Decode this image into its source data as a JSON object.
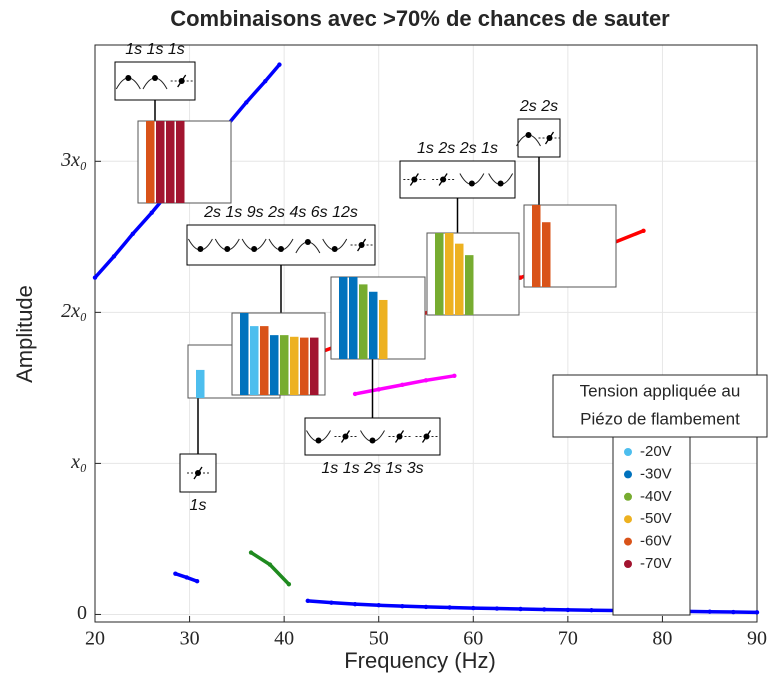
{
  "chart_data": {
    "type": "line",
    "title": "Combinaisons avec >70% de chances de sauter",
    "xlabel": "Frequency (Hz)",
    "ylabel": "Amplitude",
    "xlim": [
      20,
      90
    ],
    "xticks": [
      20,
      30,
      40,
      50,
      60,
      70,
      80,
      90
    ],
    "ylim": [
      -0.05,
      3.77
    ],
    "yticks": [
      0,
      {
        "value": 1,
        "label": "x₀"
      },
      {
        "value": 2,
        "label": "2x₀"
      },
      {
        "value": 3,
        "label": "3x₀"
      }
    ],
    "grid": true,
    "series": [
      {
        "color": "#0000ff",
        "x": [
          20,
          22,
          24,
          26,
          28,
          30,
          32,
          34,
          36,
          38,
          39.5
        ],
        "values": [
          2.23,
          2.37,
          2.52,
          2.66,
          2.81,
          2.95,
          3.1,
          3.24,
          3.39,
          3.53,
          3.64
        ]
      },
      {
        "color": "#0000ff",
        "x": [
          28.5,
          29.7,
          30.8
        ],
        "values": [
          0.27,
          0.245,
          0.22
        ]
      },
      {
        "color": "#1f8a1f",
        "x": [
          36.5,
          38.5,
          40.5
        ],
        "values": [
          0.41,
          0.33,
          0.2
        ]
      },
      {
        "color": "#0000ff",
        "x": [
          42.5,
          45,
          47.5,
          50,
          52.5,
          55,
          57.5,
          60,
          62.5,
          65,
          67.5,
          70,
          72.5,
          75,
          77.5,
          80,
          82.5,
          85,
          87.5,
          90
        ],
        "values": [
          0.09,
          0.078,
          0.068,
          0.061,
          0.055,
          0.05,
          0.046,
          0.042,
          0.039,
          0.036,
          0.033,
          0.03,
          0.028,
          0.026,
          0.024,
          0.022,
          0.02,
          0.018,
          0.016,
          0.014
        ]
      },
      {
        "color": "#ff0000",
        "x": [
          41,
          44,
          47,
          50,
          53,
          56,
          59,
          62,
          65,
          68,
          71,
          74,
          78
        ],
        "values": [
          1.67,
          1.74,
          1.81,
          1.88,
          1.95,
          2.02,
          2.09,
          2.16,
          2.23,
          2.3,
          2.37,
          2.44,
          2.54
        ]
      },
      {
        "color": "#ff00ff",
        "x": [
          47.5,
          50,
          52.5,
          55,
          58
        ],
        "values": [
          1.46,
          1.49,
          1.52,
          1.55,
          1.58
        ]
      }
    ],
    "legend": {
      "title": [
        "Tension appliquée au",
        "Piézo de flambement"
      ],
      "entries": [
        {
          "name": "-20V",
          "color": "#4dbeee"
        },
        {
          "name": "-30V",
          "color": "#0072bd"
        },
        {
          "name": "-40V",
          "color": "#77ac30"
        },
        {
          "name": "-50V",
          "color": "#edb120"
        },
        {
          "name": "-60V",
          "color": "#d95319"
        },
        {
          "name": "-70V",
          "color": "#a2142f"
        }
      ]
    },
    "insets": [
      {
        "label": "1s 1s 1s",
        "values": [
          1,
          1,
          1,
          1
        ],
        "colors": [
          "#d95319",
          "#a2142f",
          "#a2142f",
          "#a2142f"
        ]
      },
      {
        "label": "1s",
        "values": [
          0.53
        ],
        "colors": [
          "#4dbeee"
        ]
      },
      {
        "label": "2s 1s 9s 2s 4s 6s 12s",
        "values": [
          1,
          0.84,
          0.84,
          0.73,
          0.73,
          0.71,
          0.7,
          0.7
        ],
        "colors": [
          "#0072bd",
          "#4dbeee",
          "#d95319",
          "#0072bd",
          "#77ac30",
          "#edb120",
          "#d95319",
          "#a2142f"
        ]
      },
      {
        "label": "1s 1s 2s 1s 3s",
        "values": [
          1,
          1,
          0.91,
          0.82,
          0.72
        ],
        "colors": [
          "#0072bd",
          "#0072bd",
          "#77ac30",
          "#0072bd",
          "#edb120"
        ]
      },
      {
        "label": "1s 2s 2s 1s",
        "values": [
          1,
          1,
          0.87,
          0.73
        ],
        "colors": [
          "#77ac30",
          "#edb120",
          "#edb120",
          "#77ac30"
        ]
      },
      {
        "label": "2s 2s",
        "values": [
          1,
          0.79
        ],
        "colors": [
          "#d95319",
          "#d95319"
        ]
      }
    ]
  }
}
